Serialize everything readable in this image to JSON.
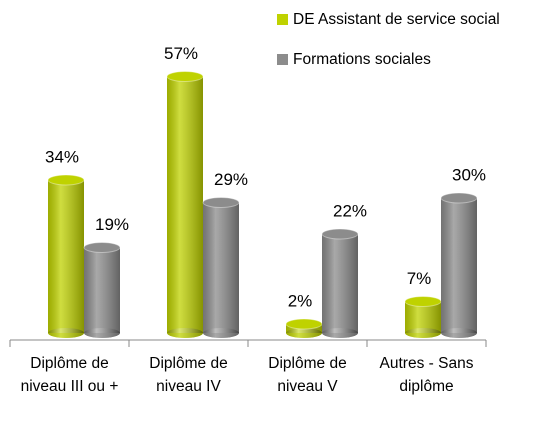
{
  "chart_data": {
    "type": "bar",
    "categories": [
      "Diplôme de niveau III ou +",
      "Diplôme de niveau IV",
      "Diplôme de niveau V",
      "Autres - Sans diplôme"
    ],
    "series": [
      {
        "name": "DE Assistant de service social",
        "color": "#bfd200",
        "values": [
          34,
          57,
          2,
          7
        ],
        "value_labels": [
          "34%",
          "57%",
          "2%",
          "7%"
        ]
      },
      {
        "name": "Formations sociales",
        "color": "#8c8c8c",
        "values": [
          19,
          29,
          22,
          30
        ],
        "value_labels": [
          "19%",
          "29%",
          "22%",
          "30%"
        ]
      }
    ],
    "legend": "top-right"
  }
}
